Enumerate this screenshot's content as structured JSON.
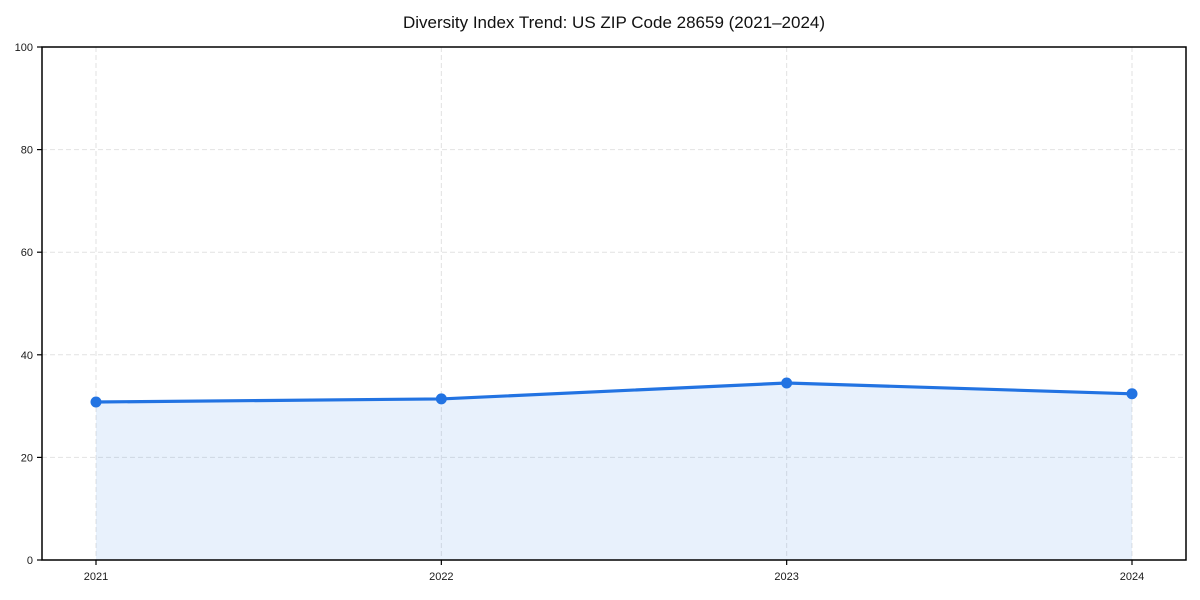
{
  "chart_data": {
    "type": "line",
    "title": "Diversity Index Trend: US ZIP Code 28659 (2021–2024)",
    "categories": [
      "2021",
      "2022",
      "2023",
      "2024"
    ],
    "series": [
      {
        "name": "Diversity Index",
        "values": [
          30.8,
          31.4,
          34.5,
          32.4
        ]
      }
    ],
    "xlabel": "",
    "ylabel": "",
    "ylim": [
      0,
      100
    ],
    "yticks": [
      0,
      20,
      40,
      60,
      80,
      100
    ],
    "grid": "dashed-both-axes",
    "legend": "none",
    "marker": "circle",
    "area_fill": true,
    "style": {
      "line_color": "#2273e2",
      "fill_color": "#2273e2",
      "fill_opacity": 0.1,
      "grid_color": "#e2e2e2",
      "spine_color": "#000000",
      "text_color": "#1a1a1a"
    }
  }
}
